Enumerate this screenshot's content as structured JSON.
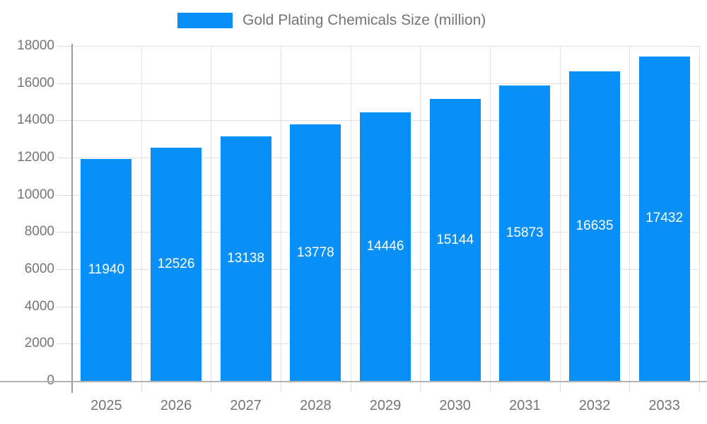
{
  "legend": {
    "label": "Gold Plating Chemicals Size (million)",
    "swatch_color": "#0890f8"
  },
  "chart_data": {
    "type": "bar",
    "title": "Gold Plating Chemicals Size (million)",
    "categories": [
      "2025",
      "2026",
      "2027",
      "2028",
      "2029",
      "2030",
      "2031",
      "2032",
      "2033"
    ],
    "values": [
      11940,
      12526,
      13138,
      13778,
      14446,
      15144,
      15873,
      16635,
      17432
    ],
    "value_labels": [
      "11940",
      "12526",
      "13138",
      "13778",
      "14446",
      "15144",
      "15873",
      "16635",
      "17432"
    ],
    "xlabel": "",
    "ylabel": "",
    "ylim": [
      0,
      18000
    ],
    "ytick_step": 2000,
    "ytick_labels": [
      "0",
      "2000",
      "4000",
      "6000",
      "8000",
      "10000",
      "12000",
      "14000",
      "16000",
      "18000"
    ],
    "grid": true,
    "legend_position": "top",
    "colors": {
      "bar": "#0890f8",
      "value_label": "#ffffff",
      "axis_label": "#757575",
      "grid_line": "#e3e3e3",
      "axis_line": "#a6a6a6"
    }
  }
}
